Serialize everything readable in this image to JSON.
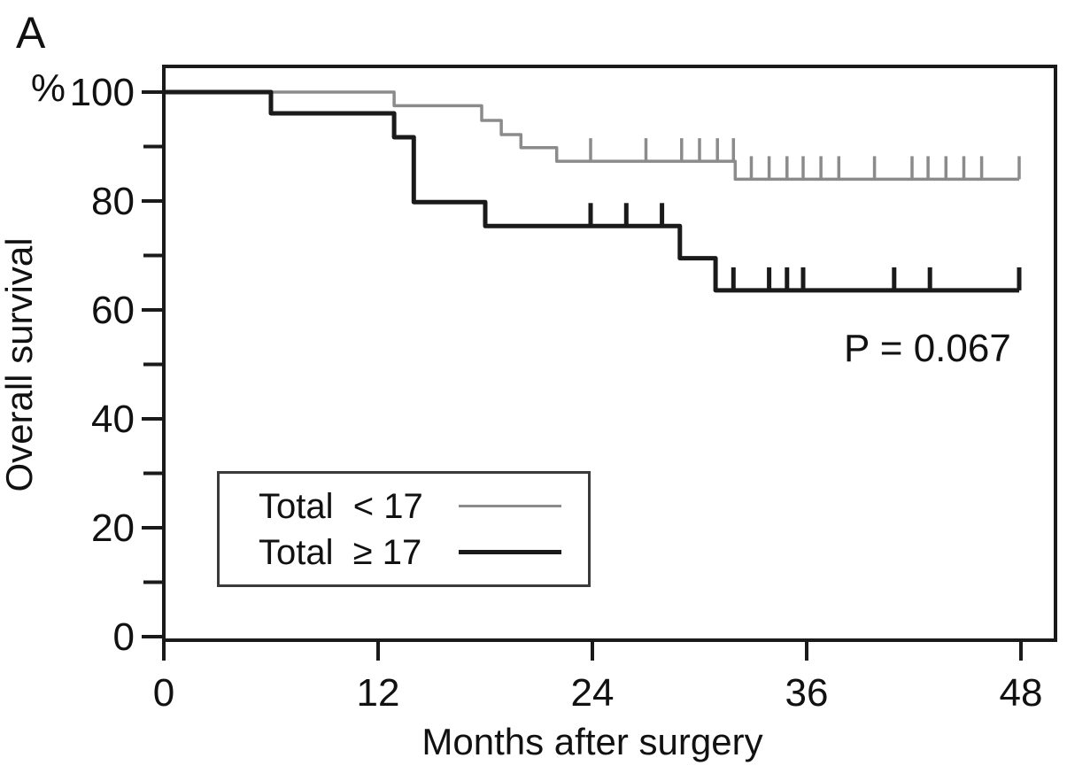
{
  "panel_label": "A",
  "y_axis": {
    "unit": "%",
    "title": "Overall survival",
    "major_ticks": [
      {
        "value": 0,
        "label": "0"
      },
      {
        "value": 20,
        "label": "20"
      },
      {
        "value": 40,
        "label": "40"
      },
      {
        "value": 60,
        "label": "60"
      },
      {
        "value": 80,
        "label": "80"
      },
      {
        "value": 100,
        "label": "100"
      }
    ],
    "minor_ticks": [
      10,
      30,
      50,
      70,
      90
    ],
    "range": [
      0,
      100
    ]
  },
  "x_axis": {
    "title": "Months after surgery",
    "major_ticks": [
      {
        "value": 0,
        "label": "0"
      },
      {
        "value": 12,
        "label": "12"
      },
      {
        "value": 24,
        "label": "24"
      },
      {
        "value": 36,
        "label": "36"
      },
      {
        "value": 48,
        "label": "48"
      }
    ],
    "range": [
      0,
      48
    ]
  },
  "annotation": {
    "p_value": "P = 0.067"
  },
  "legend": {
    "items": [
      {
        "label": "Total  < 17",
        "color": "#8b8b8b"
      },
      {
        "label": "Total  ≥ 17",
        "color": "#1a1a1a"
      }
    ]
  },
  "colors": {
    "frame": "#1a1a1a",
    "text": "#111111"
  },
  "chart_data": {
    "type": "line",
    "subtype": "kaplan-meier-step",
    "title": "",
    "xlabel": "Months after surgery",
    "ylabel": "Overall survival (%)",
    "xlim": [
      0,
      48
    ],
    "ylim": [
      0,
      100
    ],
    "grid": false,
    "legend_position": "lower-left-inside",
    "annotation_p": "P = 0.067",
    "series": [
      {
        "name": "Total < 17",
        "color": "#8b8b8b",
        "line_width": 3.5,
        "steps_month_percent": [
          [
            0,
            100
          ],
          [
            12.9,
            97.5
          ],
          [
            17.8,
            94.8
          ],
          [
            18.9,
            92.2
          ],
          [
            20.0,
            89.8
          ],
          [
            22.0,
            87.3
          ],
          [
            32.0,
            84.0
          ]
        ],
        "end_month": 47.9,
        "censor_marks_month_percent": [
          [
            23.9,
            87.3
          ],
          [
            27.0,
            87.3
          ],
          [
            29.0,
            87.3
          ],
          [
            30.0,
            87.3
          ],
          [
            31.0,
            87.3
          ],
          [
            31.9,
            87.3
          ],
          [
            32.9,
            84.0
          ],
          [
            33.9,
            84.0
          ],
          [
            34.9,
            84.0
          ],
          [
            35.8,
            84.0
          ],
          [
            36.8,
            84.0
          ],
          [
            37.8,
            84.0
          ],
          [
            39.8,
            84.0
          ],
          [
            41.9,
            84.0
          ],
          [
            42.8,
            84.0
          ],
          [
            43.8,
            84.0
          ],
          [
            44.8,
            84.0
          ],
          [
            45.8,
            84.0
          ],
          [
            47.9,
            84.0
          ]
        ]
      },
      {
        "name": "Total ≥ 17",
        "color": "#1a1a1a",
        "line_width": 5,
        "steps_month_percent": [
          [
            0,
            100
          ],
          [
            6.0,
            96.1
          ],
          [
            12.9,
            91.7
          ],
          [
            14.0,
            79.8
          ],
          [
            18.0,
            75.4
          ],
          [
            28.9,
            69.5
          ],
          [
            30.9,
            63.6
          ]
        ],
        "end_month": 47.9,
        "censor_marks_month_percent": [
          [
            23.9,
            75.4
          ],
          [
            25.9,
            75.4
          ],
          [
            27.9,
            75.4
          ],
          [
            31.9,
            63.6
          ],
          [
            33.9,
            63.6
          ],
          [
            34.9,
            63.6
          ],
          [
            35.8,
            63.6
          ],
          [
            40.9,
            63.6
          ],
          [
            42.9,
            63.6
          ],
          [
            47.9,
            63.6
          ]
        ]
      }
    ]
  }
}
